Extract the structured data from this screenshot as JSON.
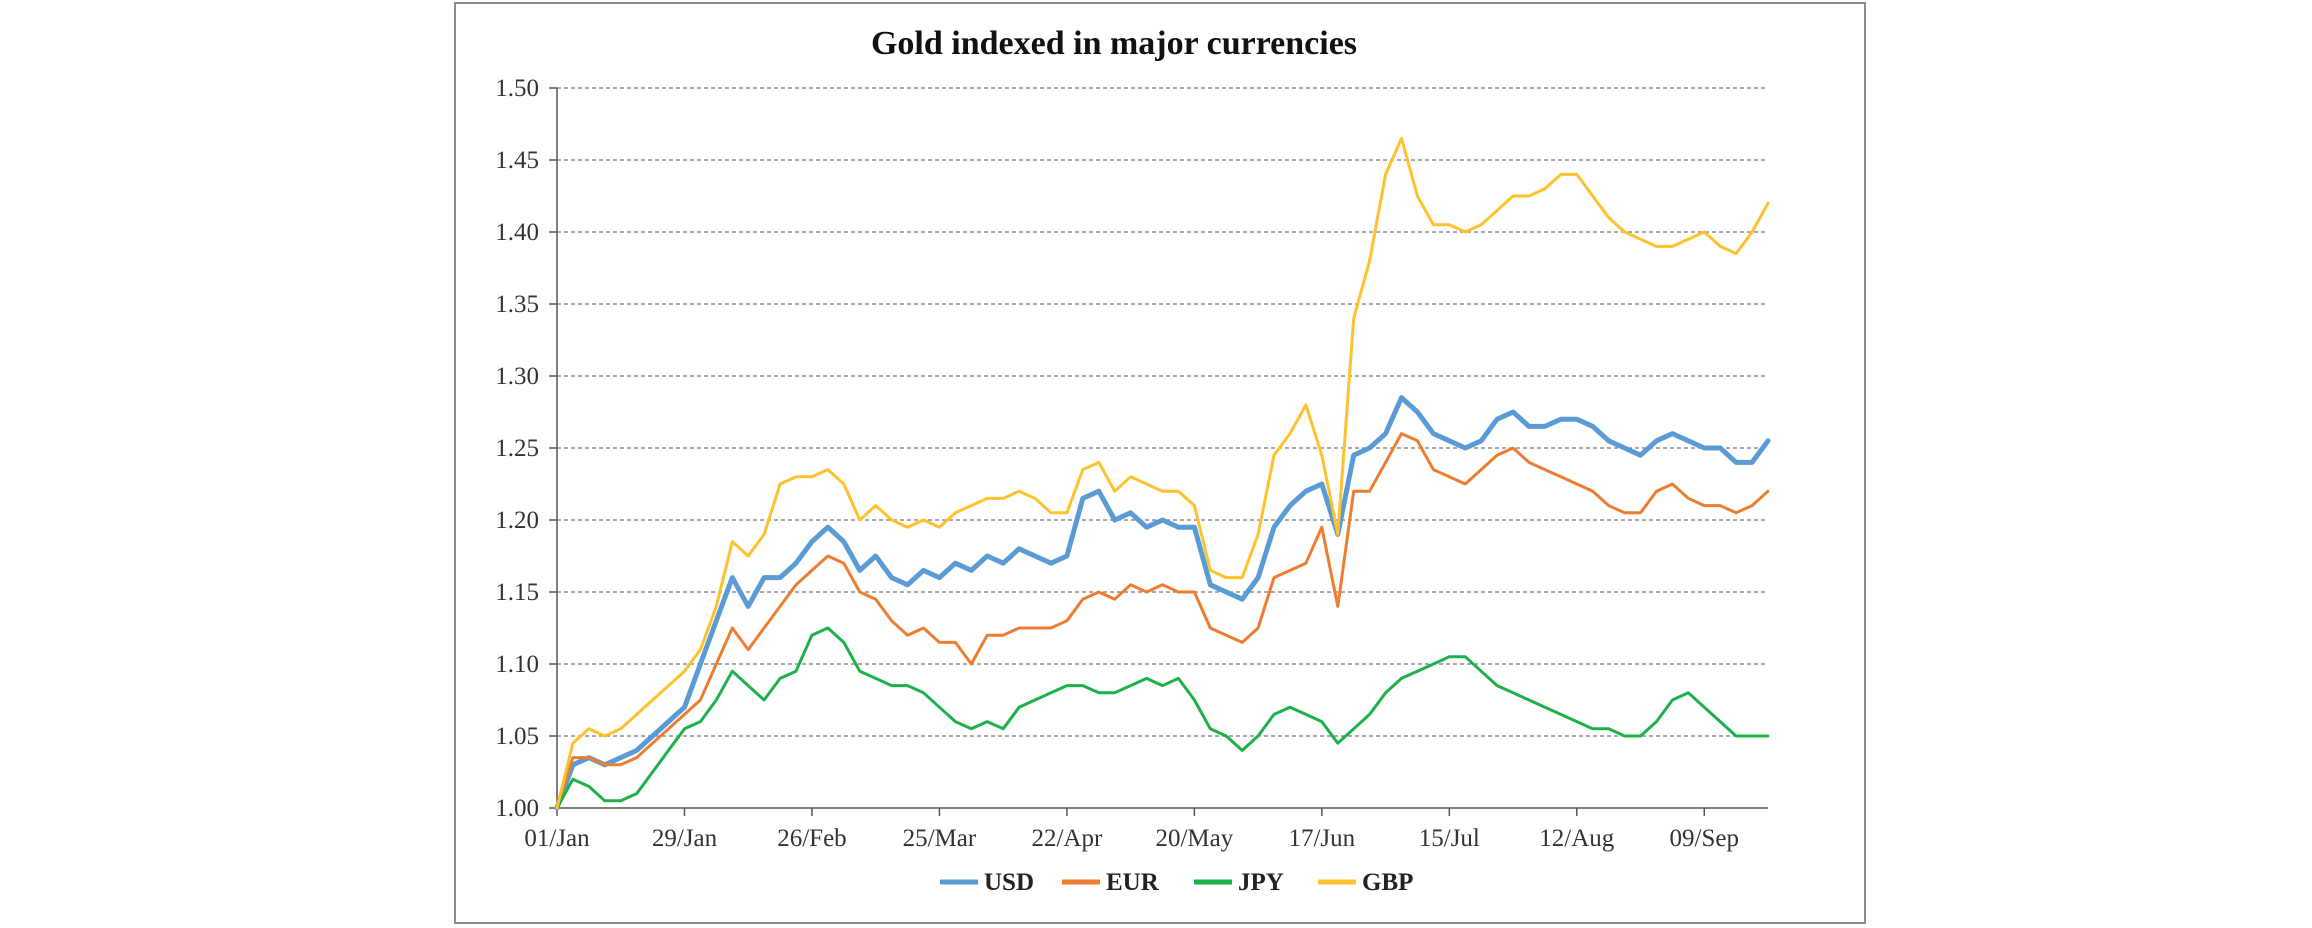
{
  "chart_data": {
    "type": "line",
    "title": "Gold indexed in major currencies",
    "xlabel": "",
    "ylabel": "",
    "ylim": [
      1.0,
      1.5
    ],
    "yticks": [
      "1.00",
      "1.05",
      "1.10",
      "1.15",
      "1.20",
      "1.25",
      "1.30",
      "1.35",
      "1.40",
      "1.45",
      "1.50"
    ],
    "xticks": [
      "01/Jan",
      "29/Jan",
      "26/Feb",
      "25/Mar",
      "22/Apr",
      "20/May",
      "17/Jun",
      "15/Jul",
      "12/Aug",
      "09/Sep"
    ],
    "grid": "horizontal dashed",
    "legend_position": "bottom",
    "x": [
      "01/Jan",
      "04/Jan",
      "08/Jan",
      "11/Jan",
      "15/Jan",
      "18/Jan",
      "22/Jan",
      "25/Jan",
      "29/Jan",
      "01/Feb",
      "05/Feb",
      "08/Feb",
      "12/Feb",
      "15/Feb",
      "19/Feb",
      "22/Feb",
      "26/Feb",
      "29/Feb",
      "04/Mar",
      "07/Mar",
      "11/Mar",
      "14/Mar",
      "18/Mar",
      "21/Mar",
      "25/Mar",
      "28/Mar",
      "01/Apr",
      "04/Apr",
      "08/Apr",
      "11/Apr",
      "15/Apr",
      "18/Apr",
      "22/Apr",
      "25/Apr",
      "29/Apr",
      "02/May",
      "06/May",
      "09/May",
      "13/May",
      "16/May",
      "20/May",
      "23/May",
      "27/May",
      "30/May",
      "03/Jun",
      "06/Jun",
      "10/Jun",
      "13/Jun",
      "17/Jun",
      "20/Jun",
      "24/Jun",
      "27/Jun",
      "01/Jul",
      "04/Jul",
      "08/Jul",
      "11/Jul",
      "15/Jul",
      "18/Jul",
      "22/Jul",
      "25/Jul",
      "29/Jul",
      "01/Aug",
      "05/Aug",
      "08/Aug",
      "12/Aug",
      "15/Aug",
      "19/Aug",
      "22/Aug",
      "26/Aug",
      "29/Aug",
      "02/Sep",
      "05/Sep",
      "09/Sep",
      "12/Sep",
      "16/Sep",
      "19/Sep",
      "23/Sep"
    ],
    "series": [
      {
        "name": "USD",
        "color": "#5B9BD5",
        "values": [
          1.0,
          1.03,
          1.035,
          1.03,
          1.035,
          1.04,
          1.05,
          1.06,
          1.07,
          1.1,
          1.13,
          1.16,
          1.14,
          1.16,
          1.16,
          1.17,
          1.185,
          1.195,
          1.185,
          1.165,
          1.175,
          1.16,
          1.155,
          1.165,
          1.16,
          1.17,
          1.165,
          1.175,
          1.17,
          1.18,
          1.175,
          1.17,
          1.175,
          1.215,
          1.22,
          1.2,
          1.205,
          1.195,
          1.2,
          1.195,
          1.195,
          1.155,
          1.15,
          1.145,
          1.16,
          1.195,
          1.21,
          1.22,
          1.225,
          1.19,
          1.245,
          1.25,
          1.26,
          1.285,
          1.275,
          1.26,
          1.255,
          1.25,
          1.255,
          1.27,
          1.275,
          1.265,
          1.265,
          1.27,
          1.27,
          1.265,
          1.255,
          1.25,
          1.245,
          1.255,
          1.26,
          1.255,
          1.25,
          1.25,
          1.24,
          1.24,
          1.255
        ]
      },
      {
        "name": "EUR",
        "color": "#ED7D31",
        "values": [
          1.0,
          1.035,
          1.035,
          1.03,
          1.03,
          1.035,
          1.045,
          1.055,
          1.065,
          1.075,
          1.1,
          1.125,
          1.11,
          1.125,
          1.14,
          1.155,
          1.165,
          1.175,
          1.17,
          1.15,
          1.145,
          1.13,
          1.12,
          1.125,
          1.115,
          1.115,
          1.1,
          1.12,
          1.12,
          1.125,
          1.125,
          1.125,
          1.13,
          1.145,
          1.15,
          1.145,
          1.155,
          1.15,
          1.155,
          1.15,
          1.15,
          1.125,
          1.12,
          1.115,
          1.125,
          1.16,
          1.165,
          1.17,
          1.195,
          1.14,
          1.22,
          1.22,
          1.24,
          1.26,
          1.255,
          1.235,
          1.23,
          1.225,
          1.235,
          1.245,
          1.25,
          1.24,
          1.235,
          1.23,
          1.225,
          1.22,
          1.21,
          1.205,
          1.205,
          1.22,
          1.225,
          1.215,
          1.21,
          1.21,
          1.205,
          1.21,
          1.22
        ]
      },
      {
        "name": "JPY",
        "color": "#1DB14B",
        "values": [
          1.0,
          1.02,
          1.015,
          1.005,
          1.005,
          1.01,
          1.025,
          1.04,
          1.055,
          1.06,
          1.075,
          1.095,
          1.085,
          1.075,
          1.09,
          1.095,
          1.12,
          1.125,
          1.115,
          1.095,
          1.09,
          1.085,
          1.085,
          1.08,
          1.07,
          1.06,
          1.055,
          1.06,
          1.055,
          1.07,
          1.075,
          1.08,
          1.085,
          1.085,
          1.08,
          1.08,
          1.085,
          1.09,
          1.085,
          1.09,
          1.075,
          1.055,
          1.05,
          1.04,
          1.05,
          1.065,
          1.07,
          1.065,
          1.06,
          1.045,
          1.055,
          1.065,
          1.08,
          1.09,
          1.095,
          1.1,
          1.105,
          1.105,
          1.095,
          1.085,
          1.08,
          1.075,
          1.07,
          1.065,
          1.06,
          1.055,
          1.055,
          1.05,
          1.05,
          1.06,
          1.075,
          1.08,
          1.07,
          1.06,
          1.05,
          1.05,
          1.05
        ]
      },
      {
        "name": "GBP",
        "color": "#FFC12E",
        "values": [
          1.0,
          1.045,
          1.055,
          1.05,
          1.055,
          1.065,
          1.075,
          1.085,
          1.095,
          1.11,
          1.14,
          1.185,
          1.175,
          1.19,
          1.225,
          1.23,
          1.23,
          1.235,
          1.225,
          1.2,
          1.21,
          1.2,
          1.195,
          1.2,
          1.195,
          1.205,
          1.21,
          1.215,
          1.215,
          1.22,
          1.215,
          1.205,
          1.205,
          1.235,
          1.24,
          1.22,
          1.23,
          1.225,
          1.22,
          1.22,
          1.21,
          1.165,
          1.16,
          1.16,
          1.19,
          1.245,
          1.26,
          1.28,
          1.245,
          1.19,
          1.34,
          1.38,
          1.44,
          1.465,
          1.425,
          1.405,
          1.405,
          1.4,
          1.405,
          1.415,
          1.425,
          1.425,
          1.43,
          1.44,
          1.44,
          1.425,
          1.41,
          1.4,
          1.395,
          1.39,
          1.39,
          1.395,
          1.4,
          1.39,
          1.385,
          1.4,
          1.42
        ]
      }
    ]
  }
}
